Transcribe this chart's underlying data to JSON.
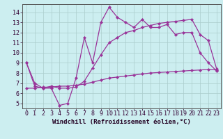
{
  "line1_x": [
    0,
    1,
    2,
    3,
    4,
    5,
    6,
    7,
    8,
    9,
    10,
    11,
    12,
    13,
    14,
    15,
    16,
    17,
    18,
    19,
    20,
    21,
    22,
    23
  ],
  "line1_y": [
    9.0,
    7.0,
    6.5,
    6.5,
    4.8,
    5.0,
    7.5,
    11.5,
    9.0,
    13.0,
    14.5,
    13.5,
    13.0,
    12.5,
    13.3,
    12.5,
    12.5,
    12.8,
    11.8,
    12.0,
    12.0,
    10.0,
    9.0,
    8.2
  ],
  "line2_x": [
    0,
    1,
    2,
    3,
    4,
    5,
    6,
    7,
    8,
    9,
    10,
    11,
    12,
    13,
    14,
    15,
    16,
    17,
    18,
    19,
    20,
    21,
    22,
    23
  ],
  "line2_y": [
    9.0,
    6.7,
    6.5,
    6.7,
    6.5,
    6.5,
    6.6,
    7.2,
    8.5,
    9.8,
    11.0,
    11.5,
    12.0,
    12.2,
    12.5,
    12.7,
    12.9,
    13.0,
    13.1,
    13.2,
    13.3,
    11.8,
    11.2,
    8.4
  ],
  "line3_x": [
    0,
    1,
    2,
    3,
    4,
    5,
    6,
    7,
    8,
    9,
    10,
    11,
    12,
    13,
    14,
    15,
    16,
    17,
    18,
    19,
    20,
    21,
    22,
    23
  ],
  "line3_y": [
    6.5,
    6.5,
    6.6,
    6.6,
    6.7,
    6.7,
    6.8,
    6.9,
    7.1,
    7.3,
    7.5,
    7.6,
    7.7,
    7.8,
    7.9,
    8.0,
    8.05,
    8.1,
    8.15,
    8.2,
    8.25,
    8.3,
    8.35,
    8.3
  ],
  "line_color": "#993399",
  "bg_color": "#cceef0",
  "grid_color": "#aacccc",
  "xlabel": "Windchill (Refroidissement éolien,°C)",
  "ylim": [
    4.5,
    14.8
  ],
  "xlim": [
    -0.5,
    23.5
  ],
  "yticks": [
    5,
    6,
    7,
    8,
    9,
    10,
    11,
    12,
    13,
    14
  ],
  "xticks": [
    0,
    1,
    2,
    3,
    4,
    5,
    6,
    7,
    8,
    9,
    10,
    11,
    12,
    13,
    14,
    15,
    16,
    17,
    18,
    19,
    20,
    21,
    22,
    23
  ],
  "marker": "D",
  "marker_size": 2.2,
  "line_width": 0.9,
  "xlabel_fontsize": 6.5,
  "tick_fontsize": 6.0
}
